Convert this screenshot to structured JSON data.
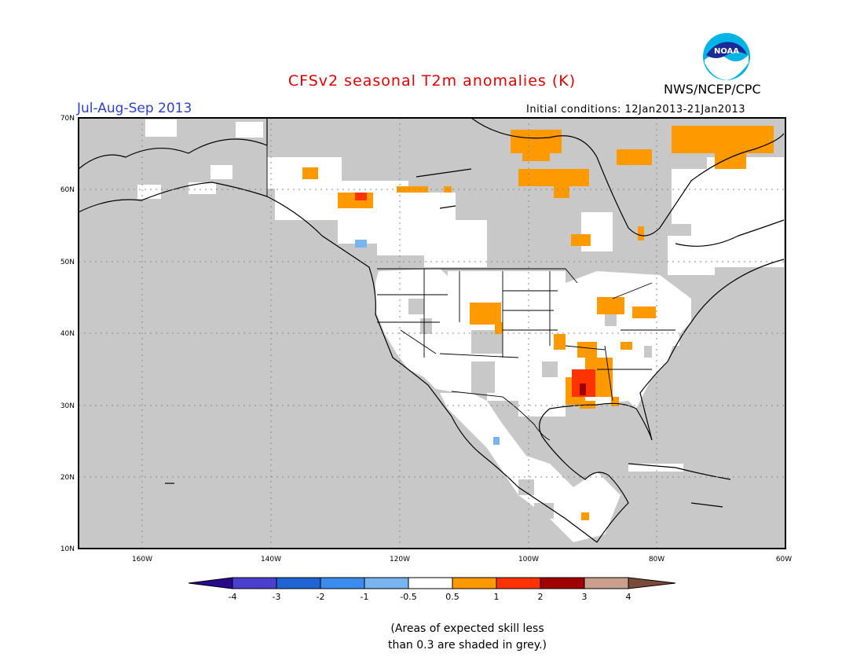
{
  "header": {
    "title": "CFSv2 seasonal T2m anomalies (K)",
    "period": "Jul-Aug-Sep 2013",
    "initial_conditions": "Initial conditions: 12Jan2013-21Jan2013",
    "agency": "NWS/NCEP/CPC",
    "logo_text": "NOAA"
  },
  "map": {
    "lat_labels": [
      "70N",
      "60N",
      "50N",
      "40N",
      "30N",
      "20N",
      "10N"
    ],
    "lon_labels": [
      "160W",
      "140W",
      "120W",
      "100W",
      "80W",
      "60W"
    ],
    "lat_range": [
      10,
      70
    ],
    "lon_range": [
      -171,
      -60
    ],
    "background_color": "#c8c8c8",
    "colors": {
      "low_skill": "#c8c8c8",
      "near_normal": "#ffffff",
      "above_0_5": "#ff9900",
      "above_1": "#ff3300",
      "above_2": "#a00000",
      "below_0_5": "#78b4f0"
    }
  },
  "colorbar": {
    "ticks": [
      "-4",
      "-3",
      "-2",
      "-1",
      "-0.5",
      "0.5",
      "1",
      "2",
      "3",
      "4"
    ],
    "colors": [
      "#2a0a8c",
      "#4b3fd0",
      "#1e64d2",
      "#3c8cf0",
      "#78b4f0",
      "#ffffff",
      "#ff9900",
      "#ff3300",
      "#a00000",
      "#c8a08c",
      "#7a4a3a"
    ]
  },
  "note": {
    "line1": "(Areas of expected skill less",
    "line2": "than 0.3 are shaded in grey.)"
  }
}
